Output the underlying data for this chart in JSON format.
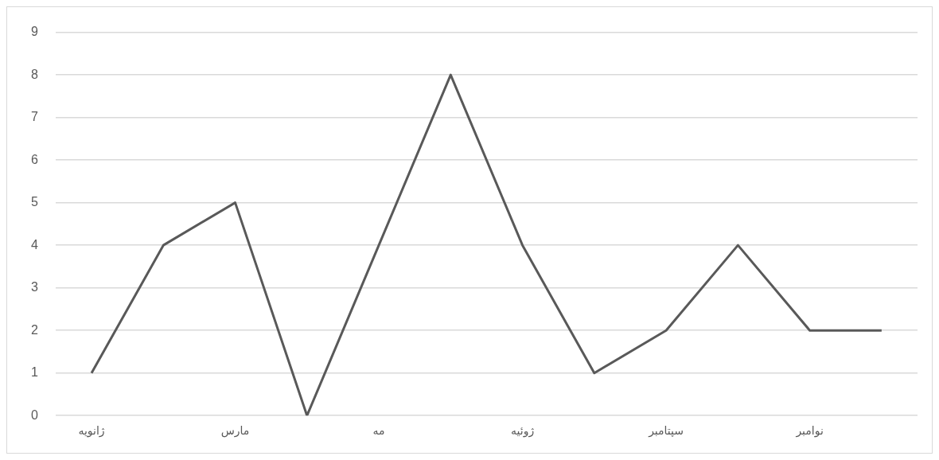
{
  "chart_data": {
    "type": "line",
    "categories": [
      "ژانویه",
      null,
      "مارس",
      null,
      "مه",
      null,
      "ژوئیه",
      null,
      "سپتامبر",
      null,
      "نوامبر",
      null
    ],
    "series": [
      {
        "color": "#595959",
        "values": [
          1,
          4,
          5,
          0,
          4,
          8,
          4,
          1,
          2,
          4,
          2,
          2
        ]
      }
    ],
    "ylim": [
      0,
      9
    ],
    "yticks": [
      0,
      1,
      2,
      3,
      4,
      5,
      6,
      7,
      8,
      9
    ],
    "grid": "y",
    "legend": false,
    "marker": "none",
    "line_style": "solid"
  }
}
